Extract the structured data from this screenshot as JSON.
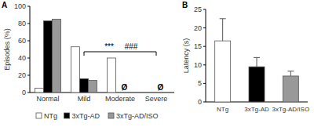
{
  "chart_data": [
    {
      "type": "bar",
      "title": "A",
      "y_label": "Episodes (%)",
      "categories": [
        "Normal",
        "Mild",
        "Moderate",
        "Severe"
      ],
      "series": [
        {
          "name": "NTg",
          "color": "#ffffff",
          "values": [
            5,
            53,
            40,
            0
          ]
        },
        {
          "name": "3xTg-AD",
          "color": "#000000",
          "values": [
            83,
            16,
            0,
            0
          ]
        },
        {
          "name": "3xTg-AD/ISO",
          "color": "#999999",
          "values": [
            85,
            14,
            0,
            0
          ]
        }
      ],
      "ylim": [
        0,
        100
      ],
      "yticks": [
        0,
        20,
        40,
        60,
        80,
        100
      ],
      "annotations": [
        "***",
        "###",
        "Ø",
        "Ø"
      ],
      "legend": "bottom"
    },
    {
      "type": "bar",
      "title": "B",
      "y_label": "Latency (s)",
      "categories": [
        "NTg",
        "3xTg-AD",
        "3xTg-AD/ISO"
      ],
      "values": [
        16.5,
        9.5,
        7
      ],
      "errors": [
        6,
        2.5,
        1.3
      ],
      "colors": [
        "#ffffff",
        "#000000",
        "#999999"
      ],
      "ylim": [
        0,
        25
      ],
      "yticks": [
        0,
        5,
        10,
        15,
        20,
        25
      ]
    }
  ]
}
